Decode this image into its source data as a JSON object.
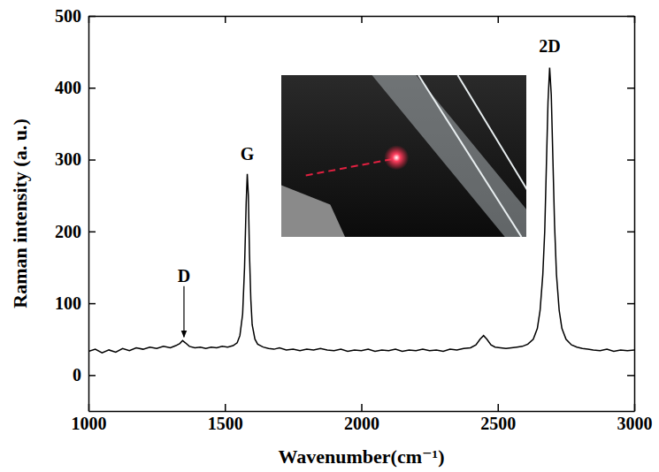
{
  "chart_data": {
    "type": "line",
    "color": "#000000",
    "x_label": "Wavenumber(cm⁻¹)",
    "y_label": "Raman intensity (a. u.)",
    "xlim": [
      1000,
      3000
    ],
    "xticks": [
      1000,
      1500,
      2000,
      2500,
      3000
    ],
    "ylim": [
      -50,
      500
    ],
    "yticks": [
      0,
      100,
      200,
      300,
      400,
      500
    ],
    "grid": false,
    "x": [
      1000,
      1025,
      1050,
      1075,
      1100,
      1125,
      1150,
      1175,
      1200,
      1225,
      1250,
      1275,
      1300,
      1320,
      1335,
      1345,
      1355,
      1370,
      1390,
      1410,
      1430,
      1450,
      1470,
      1490,
      1510,
      1530,
      1545,
      1555,
      1565,
      1572,
      1578,
      1582,
      1586,
      1590,
      1595,
      1600,
      1610,
      1620,
      1640,
      1660,
      1680,
      1700,
      1725,
      1750,
      1775,
      1800,
      1825,
      1850,
      1875,
      1900,
      1925,
      1950,
      1975,
      2000,
      2025,
      2050,
      2075,
      2100,
      2125,
      2150,
      2175,
      2200,
      2225,
      2250,
      2275,
      2300,
      2325,
      2350,
      2375,
      2400,
      2420,
      2435,
      2448,
      2460,
      2475,
      2490,
      2510,
      2530,
      2550,
      2570,
      2590,
      2610,
      2630,
      2645,
      2655,
      2665,
      2672,
      2678,
      2684,
      2690,
      2696,
      2702,
      2708,
      2715,
      2725,
      2735,
      2750,
      2770,
      2790,
      2810,
      2830,
      2850,
      2875,
      2900,
      2925,
      2950,
      2975,
      3000
    ],
    "values": [
      33,
      36,
      31,
      35,
      32,
      37,
      34,
      38,
      36,
      39,
      37,
      40,
      38,
      41,
      44,
      48,
      45,
      40,
      38,
      39,
      37,
      39,
      38,
      40,
      39,
      41,
      45,
      55,
      85,
      150,
      240,
      280,
      250,
      170,
      105,
      70,
      50,
      43,
      39,
      37,
      36,
      38,
      35,
      36,
      34,
      36,
      35,
      37,
      35,
      34,
      36,
      33,
      35,
      34,
      36,
      33,
      35,
      34,
      36,
      33,
      35,
      34,
      36,
      34,
      35,
      33,
      36,
      35,
      37,
      38,
      42,
      50,
      55,
      50,
      42,
      39,
      38,
      37,
      38,
      39,
      40,
      43,
      50,
      65,
      90,
      140,
      200,
      290,
      380,
      428,
      390,
      300,
      210,
      140,
      90,
      65,
      50,
      42,
      39,
      37,
      36,
      35,
      34,
      36,
      33,
      35,
      34,
      35
    ],
    "annotations": [
      {
        "text": "D",
        "x": 1350,
        "y": 130,
        "arrow": true
      },
      {
        "text": "G",
        "x": 1582,
        "y": 300
      },
      {
        "text": "2D",
        "x": 2690,
        "y": 450
      }
    ]
  }
}
